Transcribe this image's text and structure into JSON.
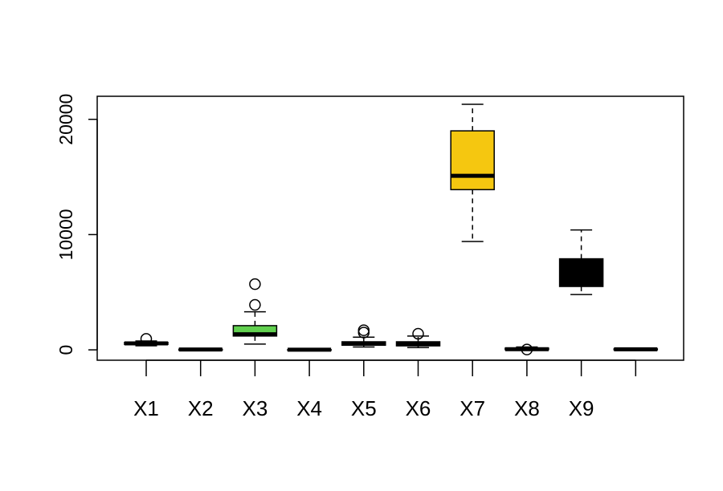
{
  "chart_data": {
    "type": "boxplot",
    "title": "",
    "xlabel": "",
    "ylabel": "",
    "ylim": [
      -900,
      22000
    ],
    "yticks": [
      0,
      10000,
      20000
    ],
    "ytick_labels": [
      "0",
      "10000",
      "20000"
    ],
    "grid": false,
    "legend": "none",
    "categories": [
      "X1",
      "X2",
      "X3",
      "X4",
      "X5",
      "X6",
      "X7",
      "X8",
      "X9",
      ""
    ],
    "boxes": [
      {
        "label": "X1",
        "whisker_low": 350,
        "q1": 470,
        "median": 560,
        "q3": 650,
        "whisker_high": 770,
        "outliers": [
          950
        ],
        "fill": "#000000"
      },
      {
        "label": "X2",
        "whisker_low": 0,
        "q1": 10,
        "median": 30,
        "q3": 50,
        "whisker_high": 70,
        "outliers": [],
        "fill": "#000000"
      },
      {
        "label": "X3",
        "whisker_low": 500,
        "q1": 1200,
        "median": 1350,
        "q3": 2100,
        "whisker_high": 3300,
        "outliers": [
          3900,
          5700
        ],
        "fill": "#61D04F"
      },
      {
        "label": "X4",
        "whisker_low": 0,
        "q1": 5,
        "median": 15,
        "q3": 25,
        "whisker_high": 40,
        "outliers": [],
        "fill": "#000000"
      },
      {
        "label": "X5",
        "whisker_low": 250,
        "q1": 400,
        "median": 530,
        "q3": 700,
        "whisker_high": 1100,
        "outliers": [
          1500,
          1700
        ],
        "fill": "#000000"
      },
      {
        "label": "X6",
        "whisker_low": 200,
        "q1": 350,
        "median": 480,
        "q3": 700,
        "whisker_high": 1200,
        "outliers": [
          1400
        ],
        "fill": "#000000"
      },
      {
        "label": "X7",
        "whisker_low": 9400,
        "q1": 13900,
        "median": 15100,
        "q3": 19000,
        "whisker_high": 21300,
        "outliers": [],
        "fill": "#F5C710"
      },
      {
        "label": "X8",
        "whisker_low": 0,
        "q1": 20,
        "median": 60,
        "q3": 150,
        "whisker_high": 250,
        "outliers": [
          30
        ],
        "fill": "#000000"
      },
      {
        "label": "X9",
        "whisker_low": 4800,
        "q1": 5500,
        "median": 6500,
        "q3": 7900,
        "whisker_high": 10400,
        "outliers": [],
        "fill": "#000000"
      },
      {
        "label": "",
        "whisker_low": 0,
        "q1": 20,
        "median": 50,
        "q3": 80,
        "whisker_high": 120,
        "outliers": [],
        "fill": "#000000"
      }
    ]
  }
}
